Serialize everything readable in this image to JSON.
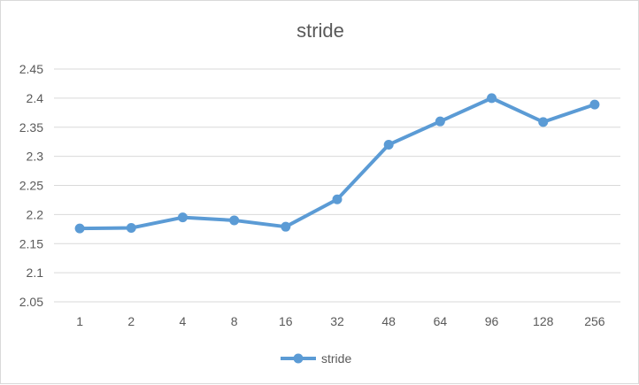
{
  "chart_data": {
    "type": "line",
    "title": "stride",
    "xlabel": "",
    "ylabel": "",
    "categories": [
      "1",
      "2",
      "4",
      "8",
      "16",
      "32",
      "48",
      "64",
      "96",
      "128",
      "256"
    ],
    "series": [
      {
        "name": "stride",
        "values": [
          2.176,
          2.177,
          2.195,
          2.19,
          2.179,
          2.226,
          2.32,
          2.36,
          2.4,
          2.359,
          2.389
        ],
        "color": "#5B9BD5"
      }
    ],
    "ylim": [
      2.05,
      2.45
    ],
    "yticks": [
      "2.05",
      "2.1",
      "2.15",
      "2.2",
      "2.25",
      "2.3",
      "2.35",
      "2.4",
      "2.45"
    ],
    "grid": true,
    "legend": "bottom"
  }
}
